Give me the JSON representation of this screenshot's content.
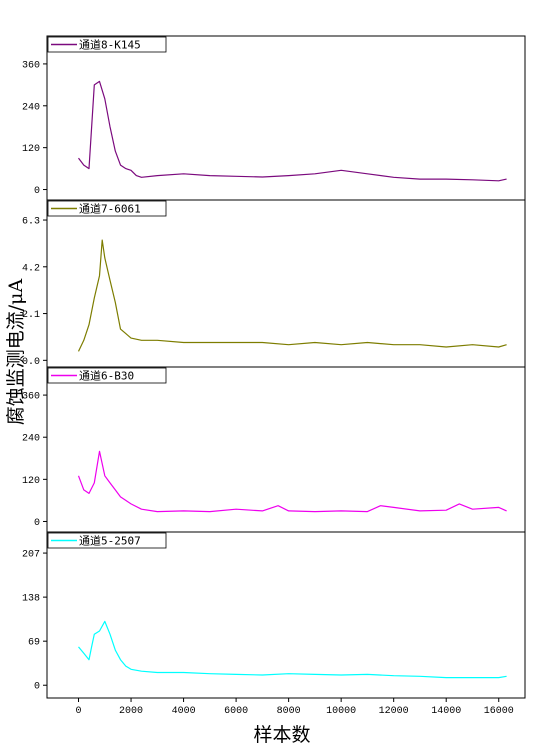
{
  "colors": {
    "background": "#ffffff",
    "axis": "#000000",
    "series": [
      "#7b0a7e",
      "#7d7d00",
      "#ee00ee",
      "#00ffff"
    ]
  },
  "chart_data": {
    "type": "line",
    "layout": "stacked-subplots",
    "xlabel": "样本数",
    "ylabel": "腐蚀监测电流/μA",
    "xlim": [
      -1200,
      17000
    ],
    "xticks": [
      0,
      2000,
      4000,
      6000,
      8000,
      10000,
      12000,
      14000,
      16000
    ],
    "xtick_labels": [
      "0",
      "2000",
      "4000",
      "6000",
      "8000",
      "10000",
      "12000",
      "14000",
      "16000"
    ],
    "grid": false,
    "legend_position": "top-left of each panel",
    "panels": [
      {
        "series_name": "通道8-K145",
        "color": "#7b0a7e",
        "ylim": [
          -30,
          440
        ],
        "yticks": [
          0,
          120,
          240,
          360
        ],
        "ytick_labels": [
          "0",
          "120",
          "240",
          "360"
        ],
        "x": [
          0,
          200,
          400,
          600,
          800,
          1000,
          1200,
          1400,
          1600,
          1800,
          2000,
          2200,
          2400,
          3000,
          4000,
          5000,
          6000,
          7000,
          8000,
          9000,
          10000,
          11000,
          12000,
          13000,
          14000,
          15000,
          16000,
          16300
        ],
        "values": [
          90,
          70,
          60,
          300,
          310,
          260,
          180,
          110,
          70,
          60,
          55,
          40,
          35,
          40,
          45,
          40,
          38,
          36,
          40,
          45,
          55,
          45,
          35,
          30,
          30,
          28,
          25,
          30
        ]
      },
      {
        "series_name": "通道7-6061",
        "color": "#7d7d00",
        "ylim": [
          -0.3,
          7.2
        ],
        "yticks": [
          0.0,
          2.1,
          4.2,
          6.3
        ],
        "ytick_labels": [
          "0.0",
          "2.1",
          "4.2",
          "6.3"
        ],
        "x": [
          0,
          200,
          400,
          600,
          800,
          900,
          1000,
          1200,
          1400,
          1600,
          1800,
          2000,
          2400,
          3000,
          4000,
          5000,
          6000,
          7000,
          8000,
          9000,
          10000,
          11000,
          12000,
          13000,
          14000,
          15000,
          16000,
          16300
        ],
        "values": [
          0.4,
          0.9,
          1.6,
          2.8,
          3.8,
          5.4,
          4.6,
          3.6,
          2.6,
          1.4,
          1.2,
          1.0,
          0.9,
          0.9,
          0.8,
          0.8,
          0.8,
          0.8,
          0.7,
          0.8,
          0.7,
          0.8,
          0.7,
          0.7,
          0.6,
          0.7,
          0.6,
          0.7
        ]
      },
      {
        "series_name": "通道6-B30",
        "color": "#ee00ee",
        "ylim": [
          -30,
          440
        ],
        "yticks": [
          0,
          120,
          240,
          360
        ],
        "ytick_labels": [
          "0",
          "120",
          "240",
          "360"
        ],
        "x": [
          0,
          200,
          400,
          600,
          800,
          1000,
          1200,
          1400,
          1600,
          1800,
          2000,
          2400,
          3000,
          4000,
          5000,
          6000,
          7000,
          7600,
          8000,
          9000,
          10000,
          11000,
          11500,
          12000,
          13000,
          14000,
          14500,
          15000,
          16000,
          16300
        ],
        "values": [
          130,
          90,
          80,
          110,
          200,
          130,
          110,
          90,
          70,
          60,
          50,
          35,
          28,
          30,
          28,
          35,
          30,
          45,
          30,
          28,
          30,
          28,
          45,
          40,
          30,
          32,
          50,
          35,
          40,
          30
        ]
      },
      {
        "series_name": "通道5-2507",
        "color": "#00ffff",
        "ylim": [
          -20,
          240
        ],
        "yticks": [
          0,
          69,
          138,
          207
        ],
        "ytick_labels": [
          "0",
          "69",
          "138",
          "207"
        ],
        "x": [
          0,
          200,
          400,
          500,
          600,
          800,
          1000,
          1200,
          1400,
          1600,
          1800,
          2000,
          2400,
          3000,
          4000,
          5000,
          6000,
          7000,
          8000,
          9000,
          10000,
          11000,
          12000,
          13000,
          14000,
          15000,
          16000,
          16300
        ],
        "values": [
          60,
          50,
          40,
          60,
          80,
          85,
          100,
          80,
          55,
          40,
          30,
          25,
          22,
          20,
          20,
          18,
          17,
          16,
          18,
          17,
          16,
          17,
          15,
          14,
          12,
          12,
          12,
          14
        ]
      }
    ]
  }
}
